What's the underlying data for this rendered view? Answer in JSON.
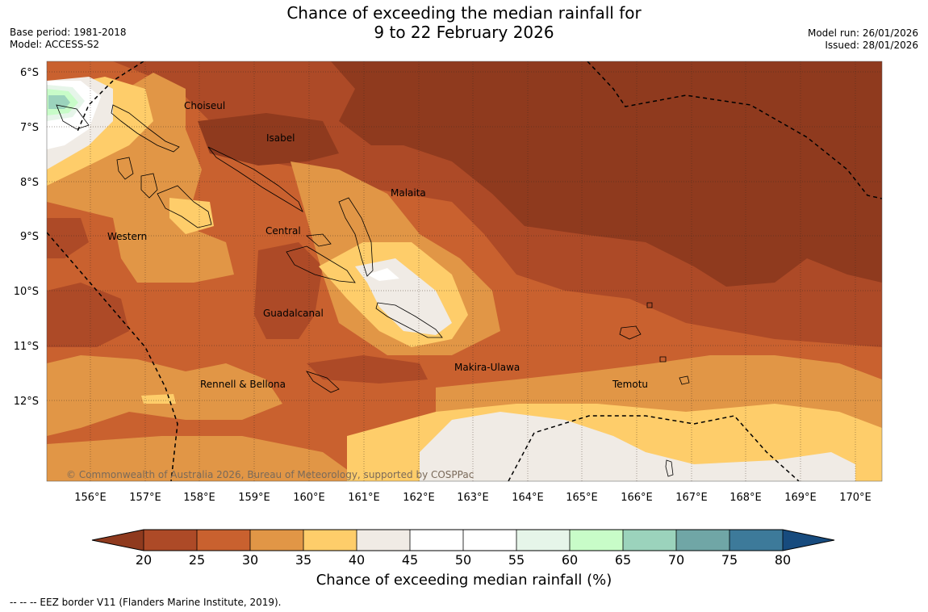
{
  "title": {
    "line1": "Chance of exceeding the median rainfall for",
    "line2": "9 to 22 February 2026"
  },
  "meta_left": {
    "base_period": "Base period: 1981-2018",
    "model": "Model: ACCESS-S2"
  },
  "meta_right": {
    "model_run": "Model run: 26/01/2026",
    "issued": "Issued: 28/01/2026"
  },
  "map": {
    "lat_labels": [
      "6°S",
      "7°S",
      "8°S",
      "9°S",
      "10°S",
      "11°S",
      "12°S"
    ],
    "lon_labels": [
      "156°E",
      "157°E",
      "158°E",
      "159°E",
      "160°E",
      "161°E",
      "162°E",
      "163°E",
      "164°E",
      "165°E",
      "166°E",
      "167°E",
      "168°E",
      "169°E",
      "170°E"
    ],
    "provinces": [
      "Choiseul",
      "Isabel",
      "Malaita",
      "Western",
      "Central",
      "Guadalcanal",
      "Makira-Ulawa",
      "Rennell & Bellona",
      "Temotu"
    ],
    "copyright": "© Commonwealth of Australia 2026, Bureau of Meteorology, supported by COSPPac"
  },
  "colorbar": {
    "ticks": [
      "20",
      "25",
      "30",
      "35",
      "40",
      "45",
      "50",
      "55",
      "60",
      "65",
      "70",
      "75",
      "80"
    ],
    "label": "Chance of exceeding median rainfall (%)",
    "colors": {
      "under": "#8f3a1e",
      "c20_25": "#ad4a27",
      "c25_30": "#c9612f",
      "c30_35": "#e19646",
      "c35_40": "#fecd6a",
      "c40_45": "#f0ebe5",
      "c45_50": "#ffffff",
      "c50_55": "#ffffff",
      "c55_60": "#e6f5e9",
      "c60_65": "#c8fcc8",
      "c65_70": "#9bd3bc",
      "c70_75": "#70a6a6",
      "c75_80": "#3d7a9a",
      "over": "#174b7e"
    }
  },
  "footnote": "--  --  -- EEZ border V11 (Flanders Marine Institute, 2019)."
}
